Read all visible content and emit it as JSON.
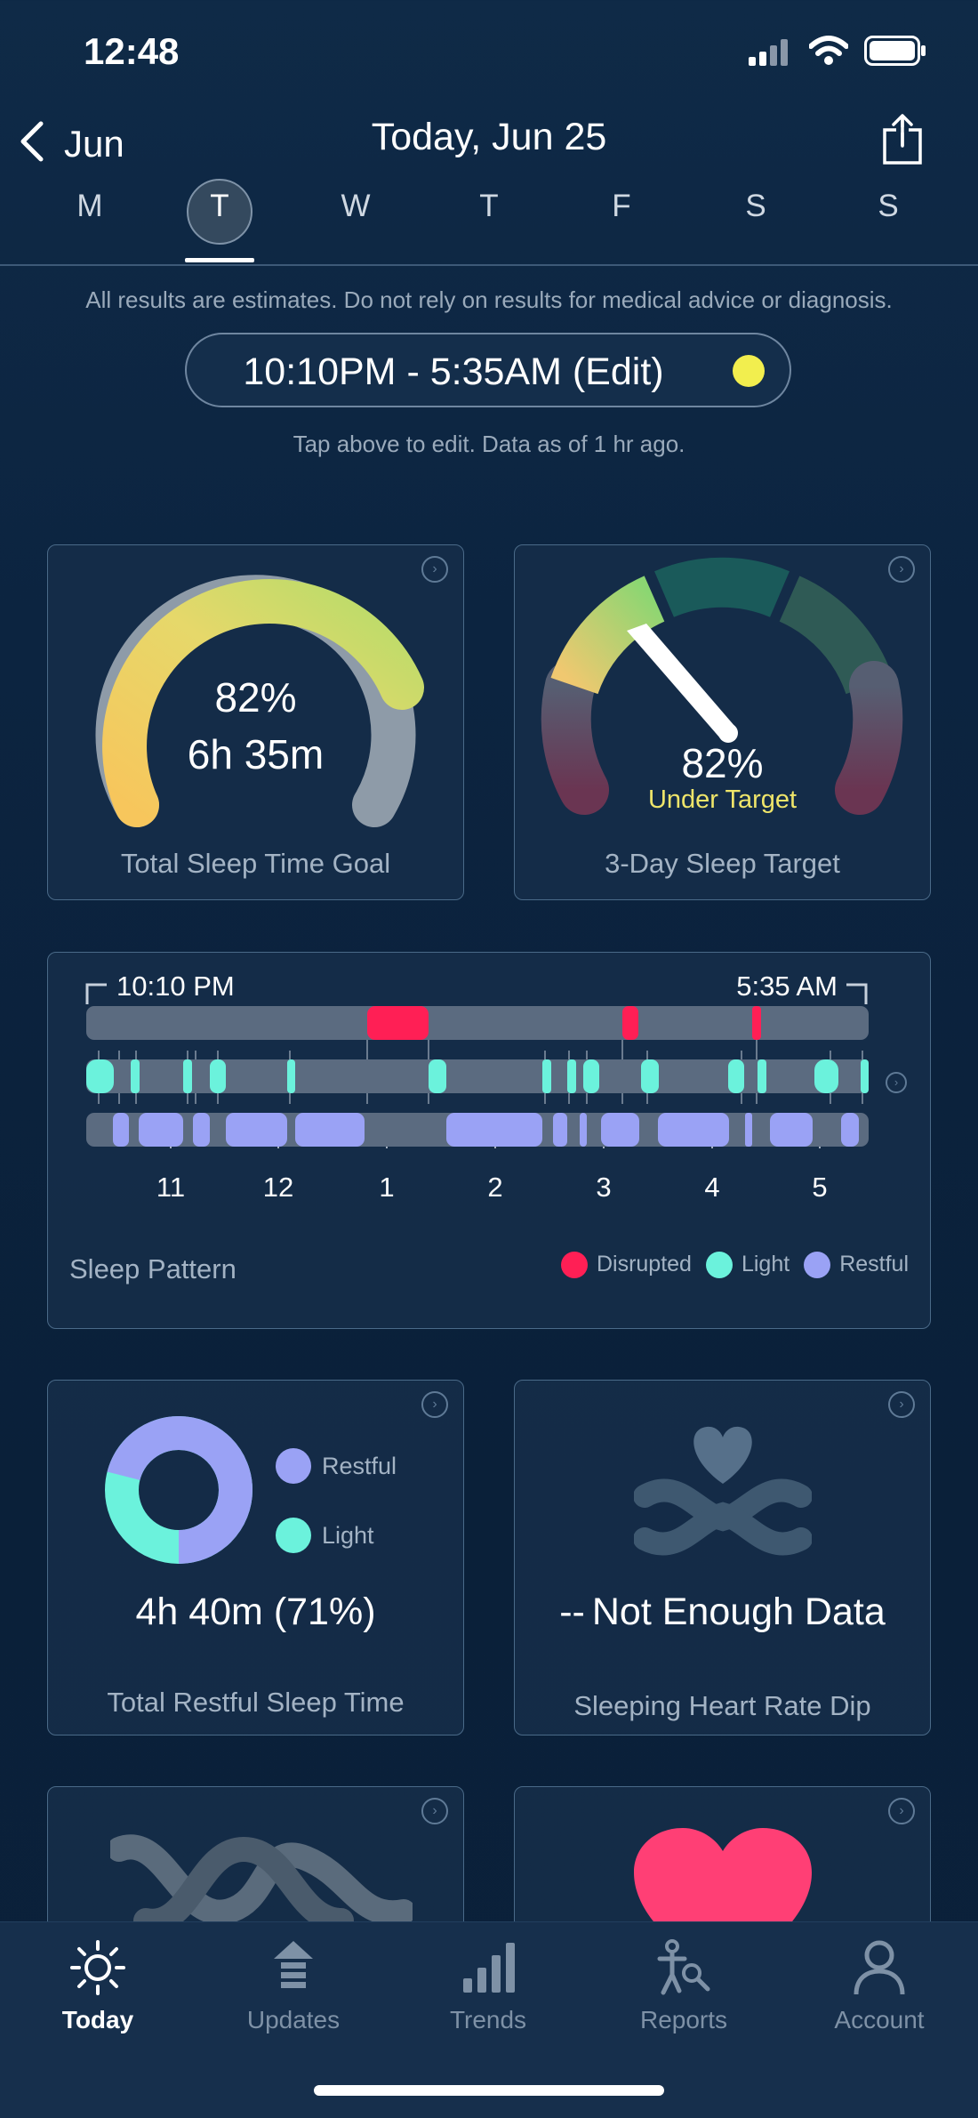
{
  "status_bar": {
    "time": "12:48"
  },
  "header": {
    "back_label": "Jun",
    "title": "Today, Jun 25"
  },
  "week": {
    "days": [
      "M",
      "T",
      "W",
      "T",
      "F",
      "S",
      "S"
    ],
    "selected_index": 1
  },
  "disclaimer": "All results are estimates. Do not rely on results for medical advice or diagnosis.",
  "sleep_range": {
    "label": "10:10PM - 5:35AM (Edit)",
    "dot_color": "#f2ee4e"
  },
  "edit_hint": "Tap above to edit. Data as of 1 hr ago.",
  "total_sleep": {
    "percent": "82%",
    "duration": "6h 35m",
    "title": "Total Sleep Time Goal",
    "fraction": 0.82
  },
  "three_day": {
    "percent": "82%",
    "status": "Under Target",
    "title": "3-Day Sleep Target"
  },
  "sleep_pattern": {
    "start_time": "10:10 PM",
    "end_time": "5:35 AM",
    "hours": [
      "11",
      "12",
      "1",
      "2",
      "3",
      "4",
      "5"
    ],
    "title": "Sleep Pattern",
    "legend": {
      "disrupted": "Disrupted",
      "light": "Light",
      "restful": "Restful"
    },
    "colors": {
      "disrupted": "#ff1f55",
      "light": "#6bf2dc",
      "restful": "#9aa2f5"
    }
  },
  "restful": {
    "legend_restful": "Restful",
    "legend_light": "Light",
    "value": "4h 40m (71%)",
    "title": "Total Restful Sleep Time",
    "restful_fraction": 0.71
  },
  "heart_dip": {
    "dashes": "--",
    "value": "Not Enough Data",
    "title": "Sleeping Heart Rate Dip"
  },
  "tabs": [
    {
      "label": "Today",
      "icon": "sun-icon",
      "active": true
    },
    {
      "label": "Updates",
      "icon": "updates-icon",
      "active": false
    },
    {
      "label": "Trends",
      "icon": "bar-chart-icon",
      "active": false
    },
    {
      "label": "Reports",
      "icon": "reports-icon",
      "active": false
    },
    {
      "label": "Account",
      "icon": "person-icon",
      "active": false
    }
  ]
}
